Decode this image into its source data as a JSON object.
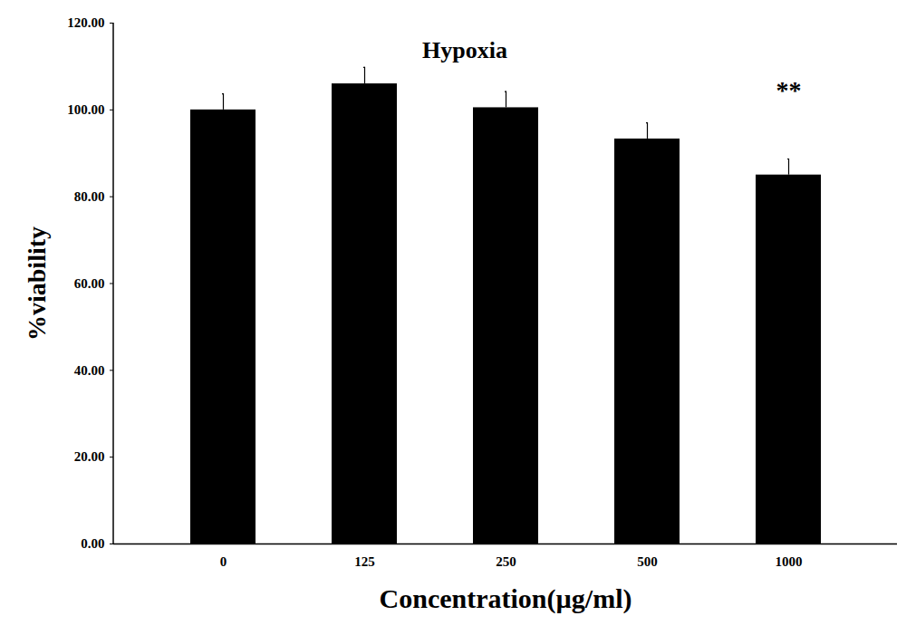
{
  "chart_data": {
    "type": "bar",
    "title": "Hypoxia",
    "x_label": "Concentration(µg/ml)",
    "y_label": "%viability",
    "categories": [
      "0",
      "125",
      "250",
      "500",
      "1000"
    ],
    "values": [
      100,
      106,
      100.5,
      93.3,
      85
    ],
    "errors": [
      3.7,
      3.8,
      3.7,
      3.7,
      3.7
    ],
    "color": "#000000",
    "ylim": [
      0,
      120
    ],
    "yticks": [
      {
        "value": 0,
        "label": "0.00"
      },
      {
        "value": 20,
        "label": "20.00"
      },
      {
        "value": 40,
        "label": "40.00"
      },
      {
        "value": 60,
        "label": "60.00"
      },
      {
        "value": 80,
        "label": "80.00"
      },
      {
        "value": 100,
        "label": "100.00"
      },
      {
        "value": 120,
        "label": "120.00"
      }
    ],
    "grid": false,
    "annotations": [
      {
        "category": "1000",
        "text": "**"
      }
    ]
  }
}
